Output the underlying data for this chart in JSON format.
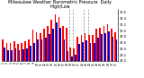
{
  "title": "Milwaukee Weather Barometric Pressure  Daily High/Low",
  "title_fontsize": 3.5,
  "bar_color_high": "#ff0000",
  "bar_color_low": "#0000cc",
  "background_color": "#ffffff",
  "ylim": [
    29.0,
    30.7
  ],
  "yticks": [
    29.0,
    29.2,
    29.4,
    29.6,
    29.8,
    30.0,
    30.2,
    30.4,
    30.6
  ],
  "ytick_fontsize": 2.5,
  "xtick_fontsize": 2.2,
  "dashed_lines": [
    17.5,
    18.5,
    21.5,
    22.5
  ],
  "dates": [
    "1",
    "2",
    "3",
    "4",
    "5",
    "6",
    "7",
    "8",
    "9",
    "10",
    "11",
    "12",
    "13",
    "14",
    "15",
    "16",
    "17",
    "18",
    "19",
    "20",
    "21",
    "22",
    "23",
    "24",
    "25",
    "26",
    "27",
    "28",
    "29",
    "30",
    "31"
  ],
  "highs": [
    29.72,
    29.6,
    29.58,
    29.65,
    29.55,
    29.58,
    29.65,
    29.72,
    30.02,
    29.95,
    29.9,
    30.05,
    30.15,
    30.35,
    30.55,
    30.45,
    30.15,
    30.1,
    29.45,
    29.4,
    29.8,
    29.85,
    29.9,
    29.85,
    29.85,
    30.05,
    30.1,
    30.15,
    30.2,
    30.05,
    29.95
  ],
  "lows": [
    29.45,
    29.35,
    29.35,
    29.4,
    29.35,
    29.38,
    29.42,
    29.5,
    29.6,
    29.7,
    29.72,
    29.78,
    29.88,
    30.05,
    30.28,
    30.08,
    29.7,
    29.32,
    29.15,
    29.2,
    29.55,
    29.62,
    29.68,
    29.6,
    29.58,
    29.78,
    29.88,
    29.92,
    29.98,
    29.8,
    29.72
  ]
}
